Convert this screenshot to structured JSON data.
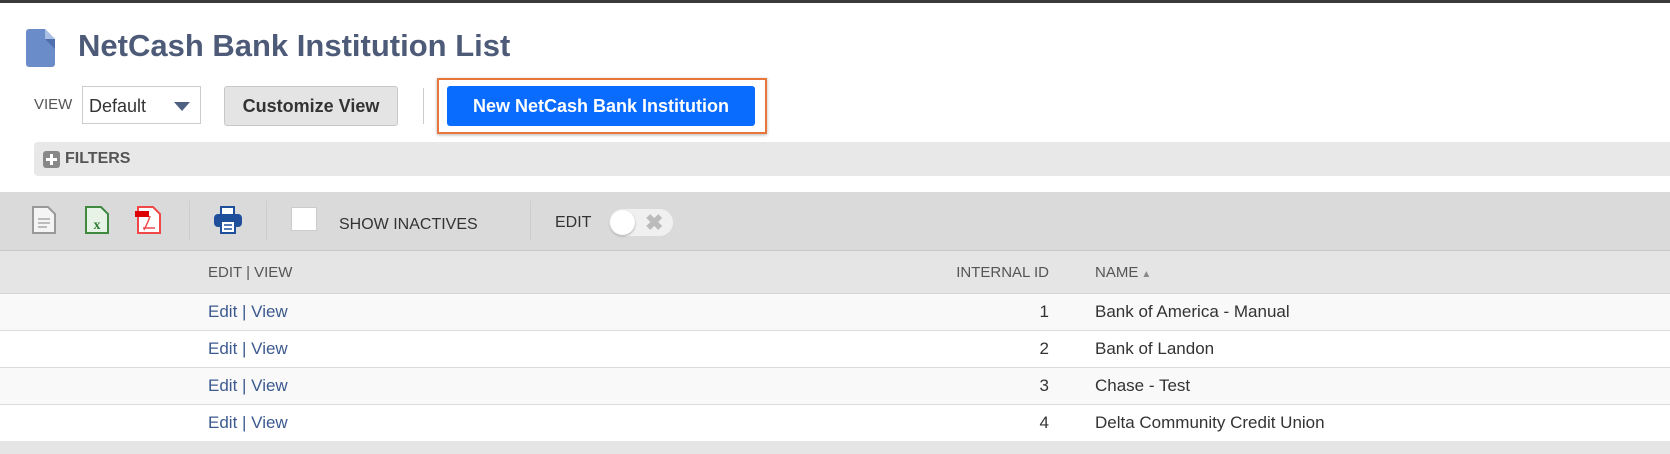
{
  "page": {
    "title": "NetCash Bank Institution List"
  },
  "toolbar": {
    "view_label": "VIEW",
    "view_value": "Default",
    "customize_label": "Customize View",
    "new_label": "New NetCash Bank Institution"
  },
  "filters": {
    "label": "FILTERS"
  },
  "grid_toolbar": {
    "icons": [
      "export-csv-icon",
      "export-excel-icon",
      "export-pdf-icon",
      "print-icon"
    ],
    "show_inactives_label": "SHOW INACTIVES",
    "show_inactives_checked": false,
    "edit_label": "EDIT",
    "edit_toggle_on": false
  },
  "table": {
    "columns": [
      "EDIT | VIEW",
      "INTERNAL ID",
      "NAME"
    ],
    "sort": {
      "column": "NAME",
      "direction": "ascending"
    },
    "rows": [
      {
        "edit": "Edit",
        "view": "View",
        "id": "1",
        "name": "Bank of America - Manual"
      },
      {
        "edit": "Edit",
        "view": "View",
        "id": "2",
        "name": "Bank of Landon"
      },
      {
        "edit": "Edit",
        "view": "View",
        "id": "3",
        "name": "Chase - Test"
      },
      {
        "edit": "Edit",
        "view": "View",
        "id": "4",
        "name": "Delta Community Credit Union"
      }
    ]
  },
  "colors": {
    "primary_button": "#0a6cff",
    "highlight_border": "#e8763b",
    "title": "#4d5b78",
    "link": "#3c5a8f"
  }
}
